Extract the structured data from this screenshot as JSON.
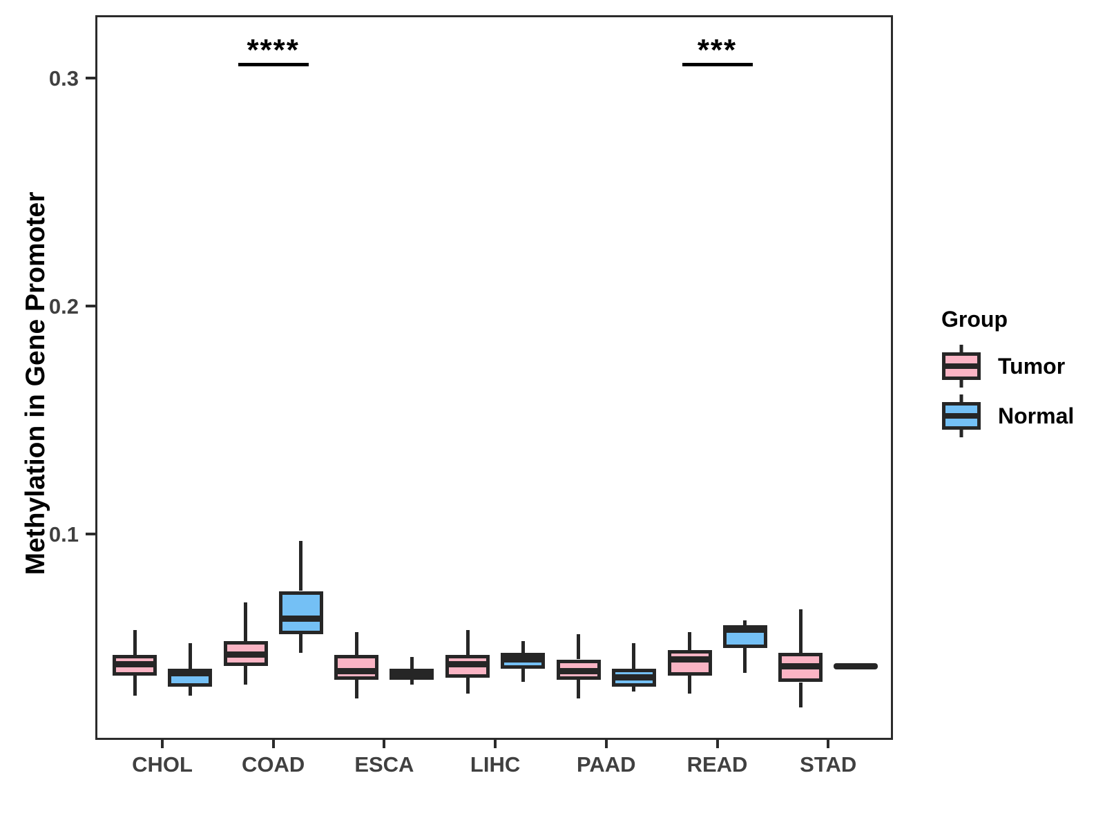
{
  "axes": {
    "y_title": "Methylation in Gene Promoter"
  },
  "legend": {
    "title": "Group",
    "items": [
      {
        "label": "Tumor",
        "color": "#FAB4C4"
      },
      {
        "label": "Normal",
        "color": "#74C0F5"
      }
    ]
  },
  "colors": {
    "tumor_fill": "#FAB4C4",
    "normal_fill": "#74C0F5",
    "stroke": "#262626",
    "axis_line": "#2b2b2b",
    "axis_text": "#404040",
    "annotation": "#000000"
  },
  "chart_data": {
    "type": "boxplot",
    "title": "",
    "xlabel": "",
    "ylabel": "Methylation in Gene Promoter",
    "categories": [
      "CHOL",
      "COAD",
      "ESCA",
      "LIHC",
      "PAAD",
      "READ",
      "STAD"
    ],
    "y_ticks": [
      {
        "label": "0.1",
        "value": 0.1
      },
      {
        "label": "0.2",
        "value": 0.2
      },
      {
        "label": "0.3",
        "value": 0.3
      }
    ],
    "ylim": [
      0.01,
      0.328
    ],
    "grid": false,
    "legend_position": "right",
    "series": [
      {
        "name": "Tumor",
        "color": "#FAB4C4",
        "boxes": [
          {
            "category": "CHOL",
            "whisker_low": 0.029,
            "q1": 0.038,
            "median": 0.043,
            "q3": 0.047,
            "whisker_high": 0.058
          },
          {
            "category": "COAD",
            "whisker_low": 0.034,
            "q1": 0.042,
            "median": 0.047,
            "q3": 0.053,
            "whisker_high": 0.07
          },
          {
            "category": "ESCA",
            "whisker_low": 0.028,
            "q1": 0.036,
            "median": 0.04,
            "q3": 0.047,
            "whisker_high": 0.057
          },
          {
            "category": "LIHC",
            "whisker_low": 0.03,
            "q1": 0.037,
            "median": 0.043,
            "q3": 0.047,
            "whisker_high": 0.058
          },
          {
            "category": "PAAD",
            "whisker_low": 0.028,
            "q1": 0.036,
            "median": 0.04,
            "q3": 0.045,
            "whisker_high": 0.056
          },
          {
            "category": "READ",
            "whisker_low": 0.03,
            "q1": 0.038,
            "median": 0.045,
            "q3": 0.049,
            "whisker_high": 0.057
          },
          {
            "category": "STAD",
            "whisker_low": 0.024,
            "q1": 0.035,
            "median": 0.042,
            "q3": 0.048,
            "whisker_high": 0.067
          }
        ]
      },
      {
        "name": "Normal",
        "color": "#74C0F5",
        "boxes": [
          {
            "category": "CHOL",
            "whisker_low": 0.029,
            "q1": 0.033,
            "median": 0.039,
            "q3": 0.041,
            "whisker_high": 0.052
          },
          {
            "category": "COAD",
            "whisker_low": 0.048,
            "q1": 0.056,
            "median": 0.063,
            "q3": 0.075,
            "whisker_high": 0.097
          },
          {
            "category": "ESCA",
            "whisker_low": 0.034,
            "q1": 0.036,
            "median": 0.038,
            "q3": 0.041,
            "whisker_high": 0.046
          },
          {
            "category": "LIHC",
            "whisker_low": 0.035,
            "q1": 0.041,
            "median": 0.045,
            "q3": 0.048,
            "whisker_high": 0.053
          },
          {
            "category": "PAAD",
            "whisker_low": 0.031,
            "q1": 0.033,
            "median": 0.037,
            "q3": 0.041,
            "whisker_high": 0.052
          },
          {
            "category": "READ",
            "whisker_low": 0.039,
            "q1": 0.05,
            "median": 0.058,
            "q3": 0.06,
            "whisker_high": 0.062
          },
          {
            "category": "STAD",
            "whisker_low": 0.042,
            "q1": 0.042,
            "median": 0.042,
            "q3": 0.042,
            "whisker_high": 0.042
          }
        ]
      }
    ],
    "annotations": [
      {
        "category": "COAD",
        "text": "****",
        "y": 0.306
      },
      {
        "category": "READ",
        "text": "***",
        "y": 0.306
      }
    ]
  }
}
